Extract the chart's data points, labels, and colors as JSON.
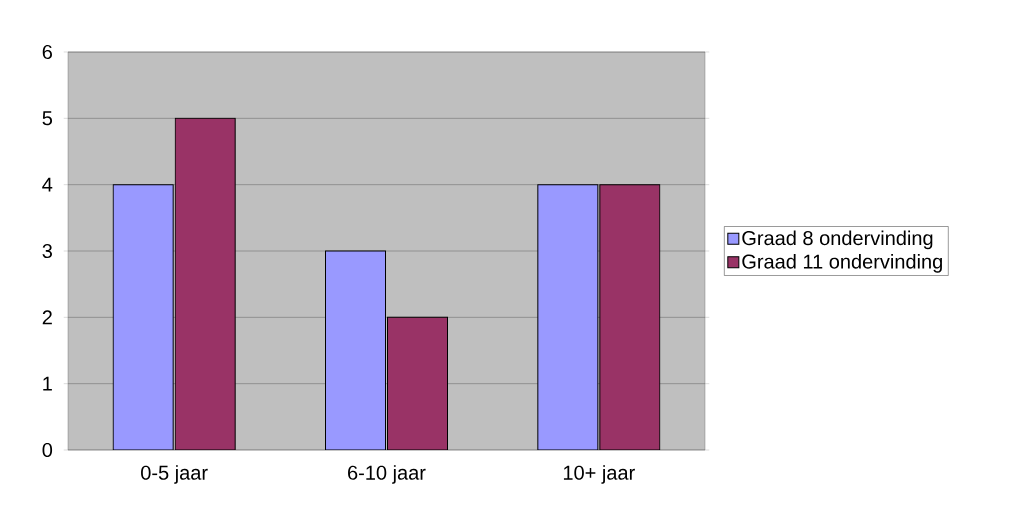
{
  "chart_data": {
    "type": "bar",
    "categories": [
      "0-5 jaar",
      "6-10 jaar",
      "10+ jaar"
    ],
    "series": [
      {
        "name": "Graad 8 ondervinding",
        "color": "#9999ff",
        "values": [
          4,
          3,
          4
        ]
      },
      {
        "name": "Graad 11 ondervinding",
        "color": "#993366",
        "values": [
          5,
          2,
          4
        ]
      }
    ],
    "ylim": [
      0,
      6
    ],
    "yticks": [
      0,
      1,
      2,
      3,
      4,
      5,
      6
    ],
    "grid": "y",
    "legend": "right"
  }
}
